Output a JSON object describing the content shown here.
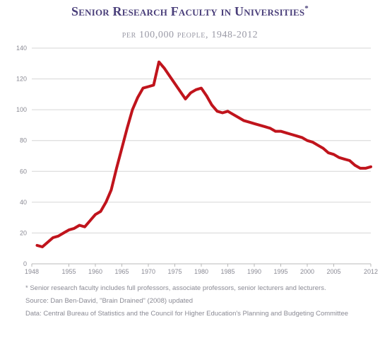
{
  "title": "Senior Research Faculty in Universities",
  "title_mark": "*",
  "subtitle": "per 100,000 people, 1948-2012",
  "notes": {
    "footnote": "* Senior research faculty includes full professors, associate professors, senior lecturers and lecturers.",
    "source": "Source: Dan Ben-David, \"Brain Drained\" (2008) updated",
    "data": "Data: Central Bureau of Statistics and the Council for Higher Education's Planning and Budgeting Committee"
  },
  "colors": {
    "line": "#c0141c",
    "title": "#4a3f7a",
    "grid": "#d6d6d6",
    "axis_text": "#8a8a94"
  },
  "chart_data": {
    "type": "line",
    "title": "Senior Research Faculty in Universities",
    "subtitle": "per 100,000 people, 1948-2012",
    "xlabel": "",
    "ylabel": "",
    "xlim": [
      1948,
      2012
    ],
    "ylim": [
      0,
      140
    ],
    "x_ticks": [
      1948,
      1955,
      1960,
      1965,
      1970,
      1975,
      1980,
      1985,
      1990,
      1995,
      2000,
      2005,
      2012
    ],
    "y_ticks": [
      0,
      20,
      40,
      60,
      80,
      100,
      120,
      140
    ],
    "grid": true,
    "legend": "none",
    "series": [
      {
        "x": [
          1949,
          1950,
          1951,
          1952,
          1953,
          1954,
          1955,
          1956,
          1957,
          1958,
          1959,
          1960,
          1961,
          1962,
          1963,
          1964,
          1965,
          1966,
          1967,
          1968,
          1969,
          1970,
          1971,
          1972,
          1973,
          1974,
          1975,
          1976,
          1977,
          1978,
          1979,
          1980,
          1981,
          1982,
          1983,
          1984,
          1985,
          1986,
          1987,
          1988,
          1989,
          1990,
          1991,
          1992,
          1993,
          1994,
          1995,
          1996,
          1997,
          1998,
          1999,
          2000,
          2001,
          2002,
          2003,
          2004,
          2005,
          2006,
          2007,
          2008,
          2009,
          2010,
          2011,
          2012
        ],
        "values": [
          12,
          11,
          14,
          17,
          18,
          20,
          22,
          23,
          25,
          24,
          28,
          32,
          34,
          40,
          48,
          62,
          75,
          88,
          100,
          108,
          114,
          115,
          116,
          131,
          127,
          122,
          117,
          112,
          107,
          111,
          113,
          114,
          109,
          103,
          99,
          98,
          99,
          97,
          95,
          93,
          92,
          91,
          90,
          89,
          88,
          86,
          86,
          85,
          84,
          83,
          82,
          80,
          79,
          77,
          75,
          72,
          71,
          69,
          68,
          67,
          64,
          62,
          62,
          63
        ]
      }
    ]
  }
}
